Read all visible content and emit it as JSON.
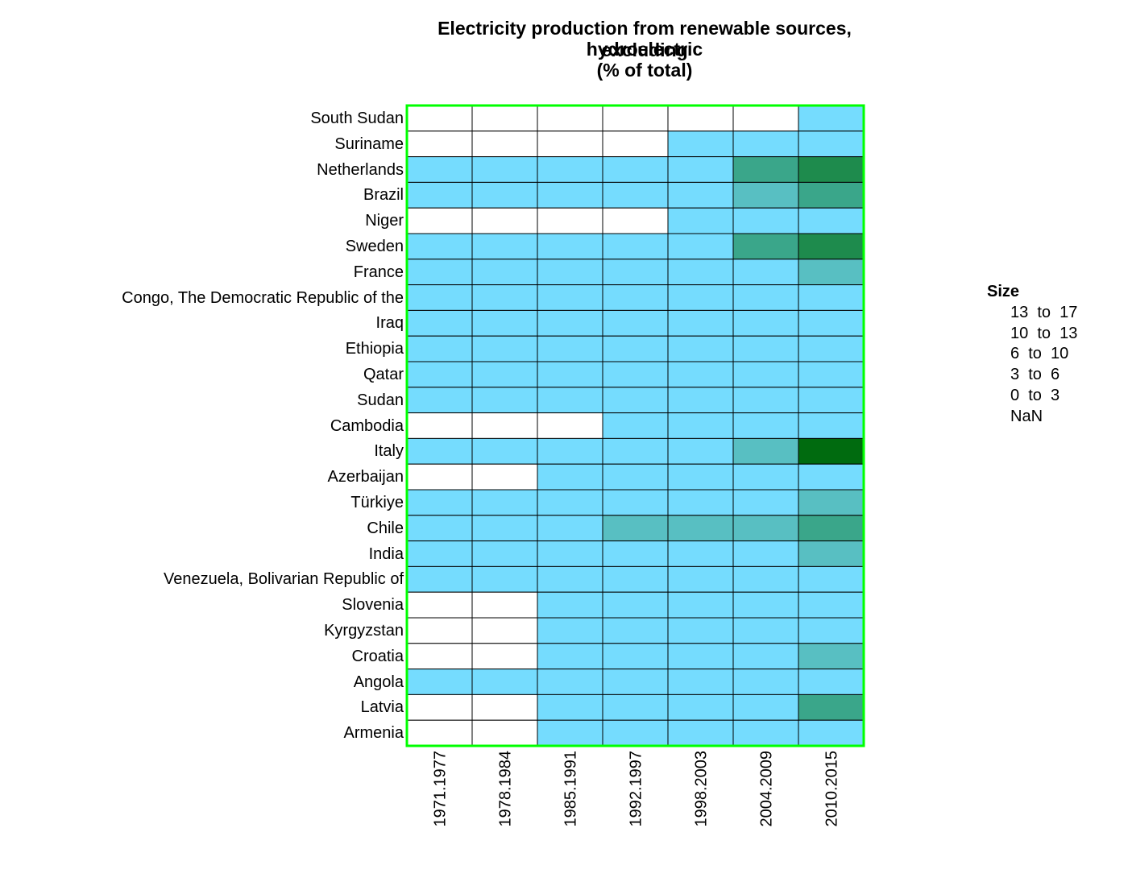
{
  "chart_data": {
    "type": "heatmap",
    "title_lines": [
      "Electricity production from renewable sources, excluding",
      "hydroelectric",
      "(% of total)"
    ],
    "columns": [
      "1971.1977",
      "1978.1984",
      "1985.1991",
      "1992.1997",
      "1998.2003",
      "2004.2009",
      "2010.2015"
    ],
    "rows": [
      "South Sudan",
      "Suriname",
      "Netherlands",
      "Brazil",
      "Niger",
      "Sweden",
      "France",
      "Congo, The Democratic Republic of the",
      "Iraq",
      "Ethiopia",
      "Qatar",
      "Sudan",
      "Cambodia",
      "Italy",
      "Azerbaijan",
      "Türkiye",
      "Chile",
      "India",
      "Venezuela, Bolivarian Republic of",
      "Slovenia",
      "Kyrgyzstan",
      "Croatia",
      "Angola",
      "Latvia",
      "Armenia"
    ],
    "bins": [
      {
        "label": "13  to  17",
        "color": "#006b0f"
      },
      {
        "label": "10  to  13",
        "color": "#1e8b4d"
      },
      {
        "label": "6  to  10",
        "color": "#3aa68a"
      },
      {
        "label": "3  to  6",
        "color": "#58bfc2"
      },
      {
        "label": "0  to  3",
        "color": "#75dcfe"
      },
      {
        "label": "NaN",
        "color": "#ffffff"
      }
    ],
    "cells": [
      [
        "NaN",
        "NaN",
        "NaN",
        "NaN",
        "NaN",
        "NaN",
        "0-3"
      ],
      [
        "NaN",
        "NaN",
        "NaN",
        "NaN",
        "0-3",
        "0-3",
        "0-3"
      ],
      [
        "0-3",
        "0-3",
        "0-3",
        "0-3",
        "0-3",
        "6-10",
        "10-13"
      ],
      [
        "0-3",
        "0-3",
        "0-3",
        "0-3",
        "0-3",
        "3-6",
        "6-10"
      ],
      [
        "NaN",
        "NaN",
        "NaN",
        "NaN",
        "0-3",
        "0-3",
        "0-3"
      ],
      [
        "0-3",
        "0-3",
        "0-3",
        "0-3",
        "0-3",
        "6-10",
        "10-13"
      ],
      [
        "0-3",
        "0-3",
        "0-3",
        "0-3",
        "0-3",
        "0-3",
        "3-6"
      ],
      [
        "0-3",
        "0-3",
        "0-3",
        "0-3",
        "0-3",
        "0-3",
        "0-3"
      ],
      [
        "0-3",
        "0-3",
        "0-3",
        "0-3",
        "0-3",
        "0-3",
        "0-3"
      ],
      [
        "0-3",
        "0-3",
        "0-3",
        "0-3",
        "0-3",
        "0-3",
        "0-3"
      ],
      [
        "0-3",
        "0-3",
        "0-3",
        "0-3",
        "0-3",
        "0-3",
        "0-3"
      ],
      [
        "0-3",
        "0-3",
        "0-3",
        "0-3",
        "0-3",
        "0-3",
        "0-3"
      ],
      [
        "NaN",
        "NaN",
        "NaN",
        "0-3",
        "0-3",
        "0-3",
        "0-3"
      ],
      [
        "0-3",
        "0-3",
        "0-3",
        "0-3",
        "0-3",
        "3-6",
        "13-17"
      ],
      [
        "NaN",
        "NaN",
        "0-3",
        "0-3",
        "0-3",
        "0-3",
        "0-3"
      ],
      [
        "0-3",
        "0-3",
        "0-3",
        "0-3",
        "0-3",
        "0-3",
        "3-6"
      ],
      [
        "0-3",
        "0-3",
        "0-3",
        "3-6",
        "3-6",
        "3-6",
        "6-10"
      ],
      [
        "0-3",
        "0-3",
        "0-3",
        "0-3",
        "0-3",
        "0-3",
        "3-6"
      ],
      [
        "0-3",
        "0-3",
        "0-3",
        "0-3",
        "0-3",
        "0-3",
        "0-3"
      ],
      [
        "NaN",
        "NaN",
        "0-3",
        "0-3",
        "0-3",
        "0-3",
        "0-3"
      ],
      [
        "NaN",
        "NaN",
        "0-3",
        "0-3",
        "0-3",
        "0-3",
        "0-3"
      ],
      [
        "NaN",
        "NaN",
        "0-3",
        "0-3",
        "0-3",
        "0-3",
        "3-6"
      ],
      [
        "0-3",
        "0-3",
        "0-3",
        "0-3",
        "0-3",
        "0-3",
        "0-3"
      ],
      [
        "NaN",
        "NaN",
        "0-3",
        "0-3",
        "0-3",
        "0-3",
        "6-10"
      ],
      [
        "NaN",
        "NaN",
        "0-3",
        "0-3",
        "0-3",
        "0-3",
        "0-3"
      ]
    ],
    "legend": {
      "title": "Size",
      "placement": "right"
    },
    "frame_color": "#00ff00",
    "grid": true
  }
}
